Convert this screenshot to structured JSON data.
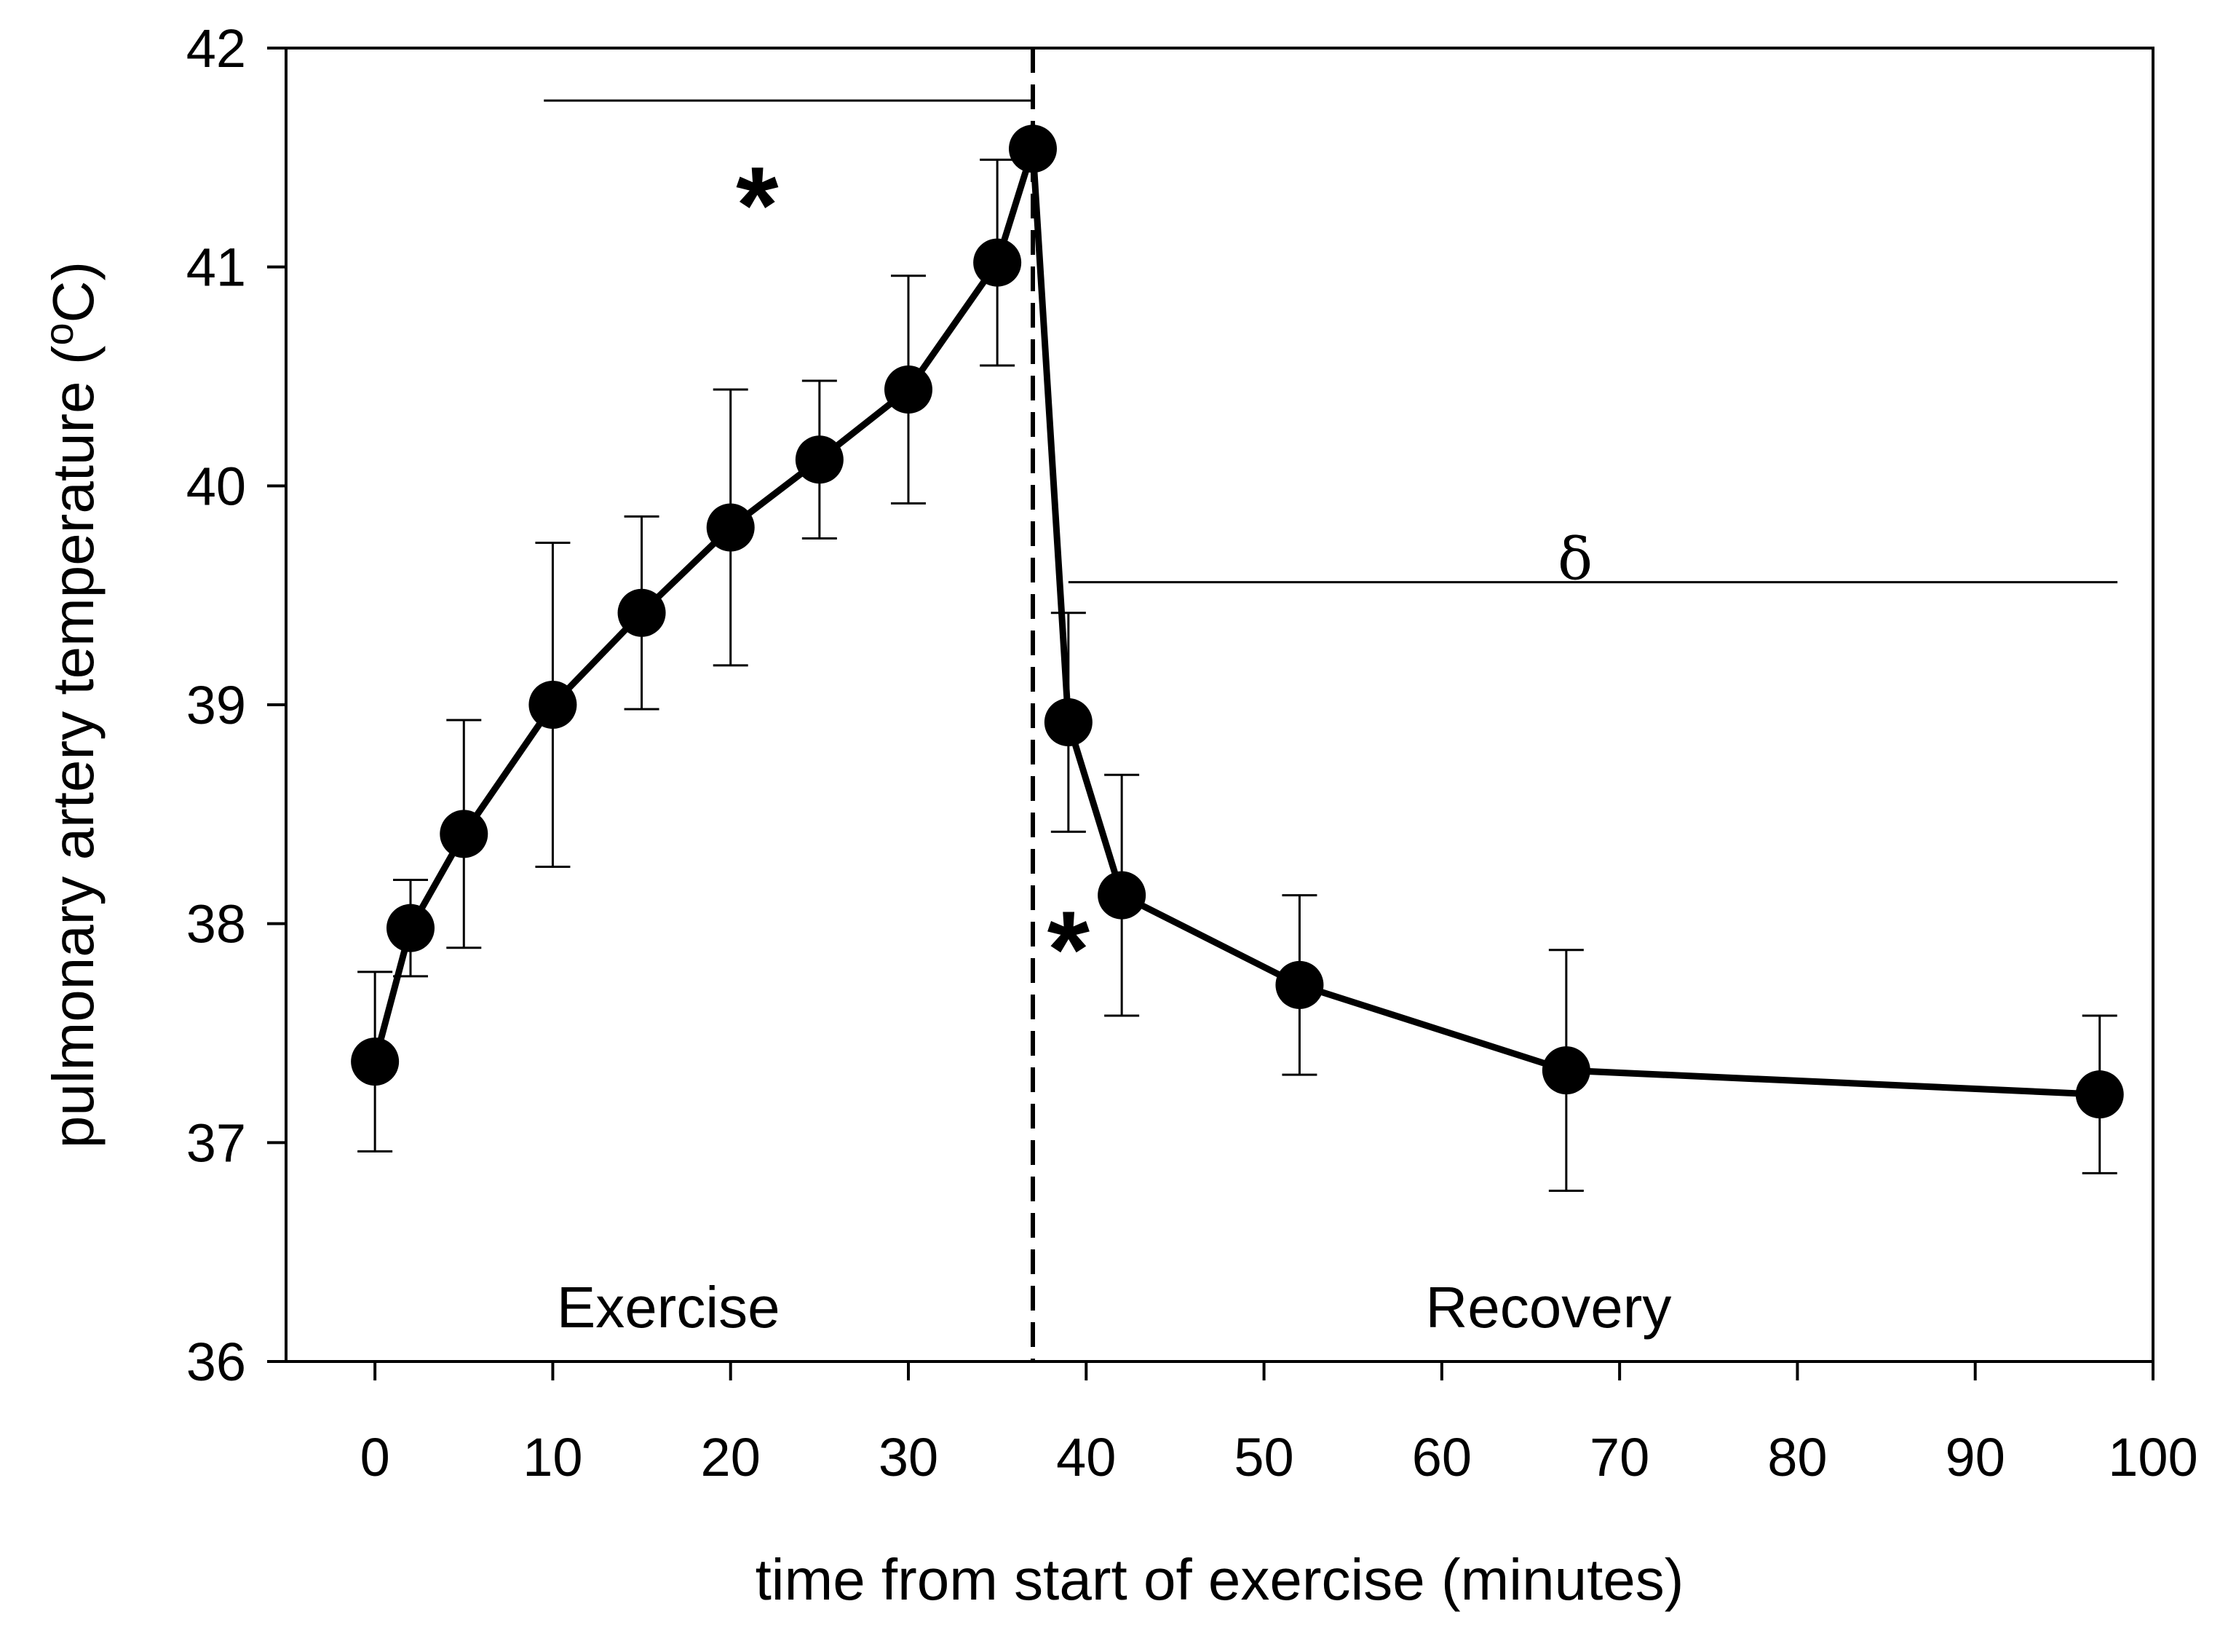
{
  "chart_data": {
    "type": "line",
    "title": "",
    "xlabel": "time from start of exercise (minutes)",
    "ylabel": "pulmonary artery temperature (",
    "ylabel_unit": "o",
    "ylabel_tail": "C)",
    "xlim": [
      -5,
      100
    ],
    "ylim": [
      36,
      42
    ],
    "x_ticks": [
      0,
      10,
      20,
      30,
      40,
      50,
      60,
      70,
      80,
      90,
      100
    ],
    "x_tick_labels": [
      "0",
      "10",
      "20",
      "30",
      "40",
      "50",
      "60",
      "70",
      "80",
      "90",
      "100"
    ],
    "y_ticks": [
      36,
      37,
      38,
      39,
      40,
      41,
      42
    ],
    "y_tick_labels": [
      "36",
      "37",
      "38",
      "39",
      "40",
      "41",
      "42"
    ],
    "grid": false,
    "legend": "none",
    "series": [
      {
        "name": "pulmonary artery temperature",
        "x": [
          0,
          2,
          5,
          10,
          15,
          20,
          25,
          30,
          35,
          37,
          39,
          42,
          52,
          67,
          97
        ],
        "y": [
          37.37,
          37.98,
          38.41,
          39.0,
          39.42,
          39.81,
          40.12,
          40.44,
          41.02,
          41.54,
          38.92,
          38.13,
          37.72,
          37.33,
          37.22
        ],
        "error": [
          0.41,
          0.22,
          0.52,
          0.74,
          0.44,
          0.63,
          0.36,
          0.52,
          0.47,
          0.0,
          0.5,
          0.55,
          0.41,
          0.55,
          0.36
        ]
      }
    ],
    "divider_x": 37,
    "regions": [
      {
        "label": "Exercise",
        "x": 16.5,
        "y": 36.25
      },
      {
        "label": "Recovery",
        "x": 66,
        "y": 36.25
      }
    ],
    "annotations": [
      {
        "type": "bracket",
        "x_start": 9.5,
        "x_end": 37,
        "y": 41.76,
        "symbol": "*",
        "symbol_x": 21.5,
        "symbol_y": 41.35
      },
      {
        "type": "marker",
        "symbol": "*",
        "x": 39.0,
        "y": 37.95
      },
      {
        "type": "bracket",
        "x_start": 39,
        "x_end": 98,
        "y": 39.56,
        "symbol": "δ",
        "symbol_x": 67.5,
        "symbol_y": 39.66
      }
    ]
  }
}
